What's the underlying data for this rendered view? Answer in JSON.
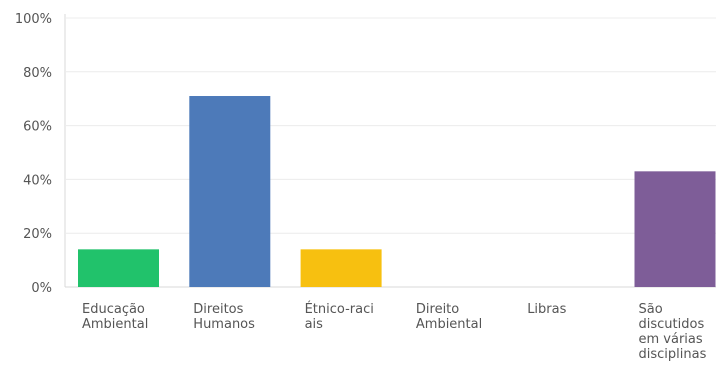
{
  "chart_data": {
    "type": "bar",
    "categories": [
      [
        "Educação",
        "Ambiental"
      ],
      [
        "Direitos",
        "Humanos"
      ],
      [
        "Étnico-raci",
        "ais"
      ],
      [
        "Direito",
        "Ambiental"
      ],
      [
        "Libras"
      ],
      [
        "São",
        "discutidos",
        "em várias",
        "disciplinas"
      ]
    ],
    "values": [
      14,
      71,
      14,
      0,
      0,
      43
    ],
    "colors": [
      "#21c26b",
      "#4d7ab9",
      "#f7c010",
      "#e0e0e0",
      "#e0e0e0",
      "#7e5d98"
    ],
    "yticks": [
      "0%",
      "20%",
      "40%",
      "60%",
      "80%",
      "100%"
    ],
    "ylim": [
      0,
      100
    ],
    "grid": true,
    "title": "",
    "xlabel": "",
    "ylabel": ""
  }
}
